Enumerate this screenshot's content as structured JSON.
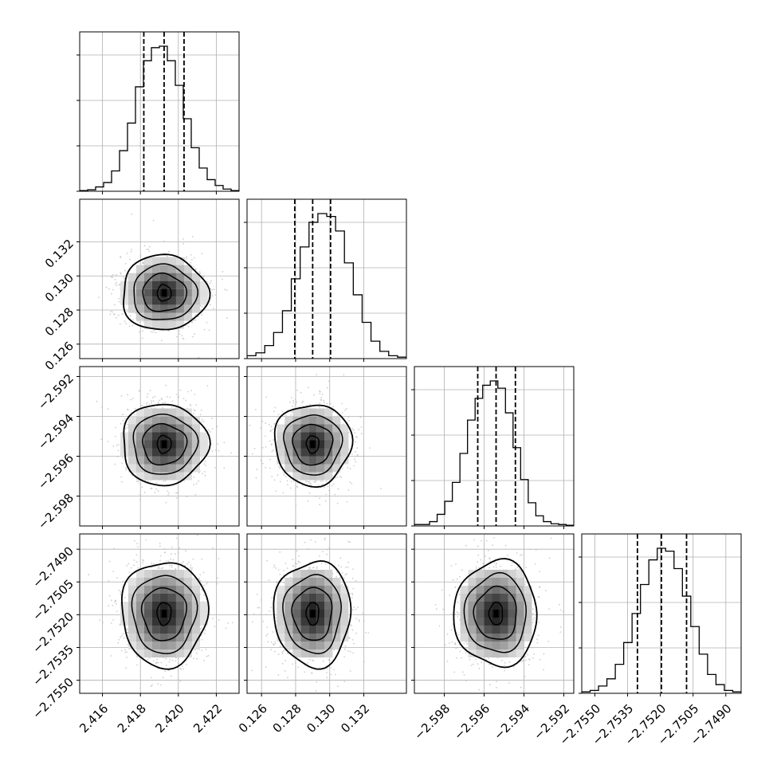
{
  "chart_data": {
    "type": "corner",
    "n_params": 4,
    "grid": true,
    "quantile_lines": "dashed",
    "params": [
      {
        "range": [
          2.4148,
          2.4232
        ],
        "ticks": [
          2.416,
          2.418,
          2.42,
          2.422
        ],
        "tick_labels": [
          "2.416",
          "2.418",
          "2.420",
          "2.422"
        ],
        "quantiles": [
          2.41818,
          2.41925,
          2.4203
        ],
        "hist": [
          0.005,
          0.01,
          0.03,
          0.06,
          0.14,
          0.28,
          0.47,
          0.72,
          0.9,
          0.99,
          1.0,
          0.9,
          0.73,
          0.5,
          0.3,
          0.16,
          0.08,
          0.04,
          0.015,
          0.005
        ]
      },
      {
        "range": [
          0.12515,
          0.1345
        ],
        "ticks": [
          0.126,
          0.128,
          0.13,
          0.132
        ],
        "tick_labels": [
          "0.126",
          "0.128",
          "0.130",
          "0.132"
        ],
        "quantiles": [
          0.12795,
          0.129,
          0.13005
        ],
        "hist": [
          0.02,
          0.04,
          0.09,
          0.18,
          0.33,
          0.55,
          0.77,
          0.94,
          1.0,
          0.98,
          0.88,
          0.66,
          0.44,
          0.25,
          0.12,
          0.05,
          0.02,
          0.01
        ]
      },
      {
        "range": [
          -2.5995,
          -2.5915
        ],
        "ticks": [
          -2.598,
          -2.596,
          -2.594,
          -2.592
        ],
        "tick_labels": [
          "−2.598",
          "−2.596",
          "−2.594",
          "−2.592"
        ],
        "quantiles": [
          -2.59632,
          -2.5954,
          -2.59443
        ],
        "hist": [
          0.01,
          0.01,
          0.03,
          0.08,
          0.17,
          0.3,
          0.5,
          0.73,
          0.88,
          0.97,
          1.0,
          0.95,
          0.78,
          0.54,
          0.32,
          0.16,
          0.07,
          0.03,
          0.015,
          0.01,
          0.005
        ]
      },
      {
        "range": [
          -2.7556,
          -2.7483
        ],
        "ticks": [
          -2.755,
          -2.7535,
          -2.752,
          -2.7505,
          -2.749
        ],
        "tick_labels": [
          "−2.7550",
          "−2.7535",
          "−2.7520",
          "−2.7505",
          "−2.7490"
        ],
        "quantiles": [
          -2.75305,
          -2.75195,
          -2.7508
        ],
        "hist": [
          0.01,
          0.02,
          0.05,
          0.1,
          0.2,
          0.35,
          0.55,
          0.75,
          0.92,
          1.0,
          0.98,
          0.86,
          0.67,
          0.46,
          0.27,
          0.13,
          0.06,
          0.02,
          0.01
        ]
      }
    ]
  },
  "colors": {
    "axis": "#000000",
    "grid": "#b0b0b0",
    "line": "#000000",
    "points": "#bdbdbd",
    "density_dark": "#000000"
  }
}
